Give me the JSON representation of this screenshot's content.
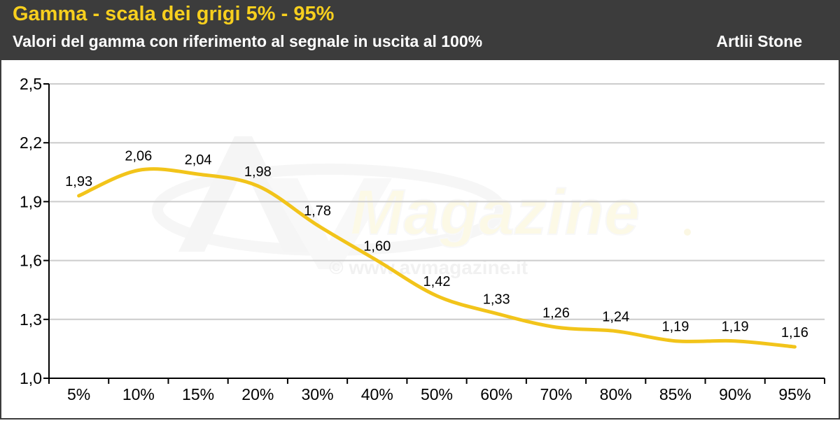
{
  "header": {
    "title": "Gamma - scala dei grigi 5% - 95%",
    "subtitle": "Valori del gamma con riferimento al segnale in uscita al 100%",
    "device": "Artlii Stone"
  },
  "watermark": {
    "brand": "Magazine",
    "url": "© www.avmagazine.it"
  },
  "colors": {
    "header_bg": "#3c3c3c",
    "title": "#f7cf1e",
    "line": "#f2c41a",
    "grid": "#cccccc"
  },
  "chart_data": {
    "type": "line",
    "categories": [
      "5%",
      "10%",
      "15%",
      "20%",
      "30%",
      "40%",
      "50%",
      "60%",
      "70%",
      "80%",
      "85%",
      "90%",
      "95%"
    ],
    "values": [
      1.93,
      2.06,
      2.04,
      1.98,
      1.78,
      1.6,
      1.42,
      1.33,
      1.26,
      1.24,
      1.19,
      1.19,
      1.16
    ],
    "value_labels": [
      "1,93",
      "2,06",
      "2,04",
      "1,98",
      "1,78",
      "1,60",
      "1,42",
      "1,33",
      "1,26",
      "1,24",
      "1,19",
      "1,19",
      "1,16"
    ],
    "yticks": [
      1.0,
      1.3,
      1.6,
      1.9,
      2.2,
      2.5
    ],
    "ytick_labels": [
      "1,0",
      "1,3",
      "1,6",
      "1,9",
      "2,2",
      "2,5"
    ],
    "ylim": [
      1.0,
      2.5
    ],
    "grid": true,
    "smooth": true
  }
}
